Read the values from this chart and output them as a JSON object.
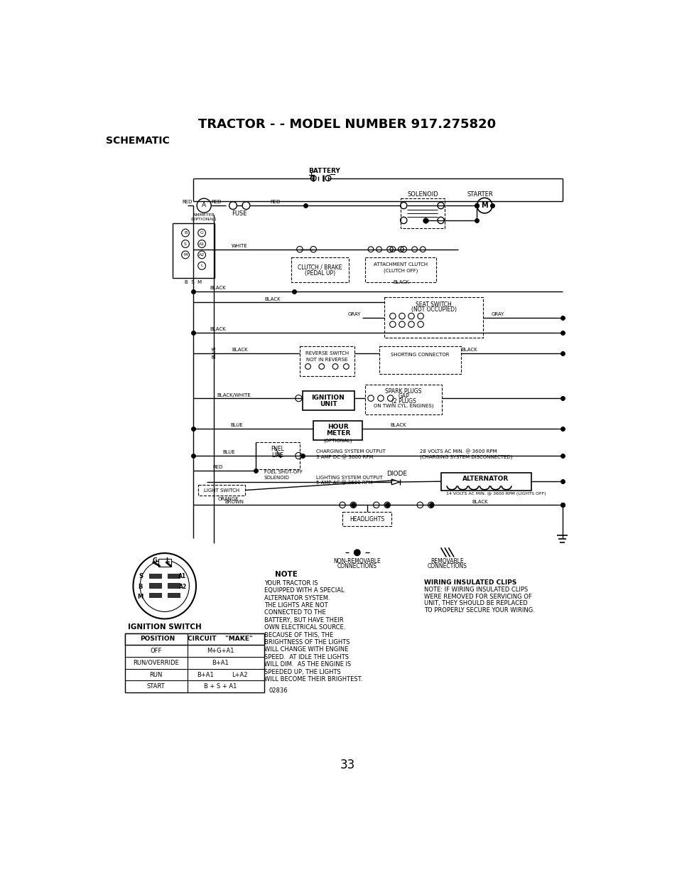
{
  "title": "TRACTOR - - MODEL NUMBER 917.275820",
  "subtitle": "SCHEMATIC",
  "page_number": "33",
  "bg": "#ffffff",
  "table_rows": [
    [
      "OFF",
      "M+G+A1",
      ""
    ],
    [
      "RUN/OVERRIDE",
      "B+A1",
      ""
    ],
    [
      "RUN",
      "B+A1",
      "L+A2"
    ],
    [
      "START",
      "B + S + A1",
      ""
    ]
  ],
  "diagram_code": "02836",
  "note_lines": [
    "YOUR TRACTOR IS",
    "EQUIPPED WITH A SPECIAL",
    "ALTERNATOR SYSTEM.",
    "THE LIGHTS ARE NOT",
    "CONNECTED TO THE",
    "BATTERY, BUT HAVE THEIR",
    "OWN ELECTRICAL SOURCE.",
    "BECAUSE OF THIS, THE",
    "BRIGHTNESS OF THE LIGHTS",
    "WILL CHANGE WITH ENGINE",
    "SPEED.  AT IDLE THE LIGHTS",
    "WILL DIM.  AS THE ENGINE IS",
    "SPEEDED UP, THE LIGHTS",
    "WILL BECOME THEIR BRIGHTEST."
  ],
  "wiring_lines": [
    "NOTE: IF WIRING INSULATED CLIPS",
    "WERE REMOVED FOR SERVICING OF",
    "UNIT, THEY SHOULD BE REPLACED",
    "TO PROPERLY SECURE YOUR WIRING."
  ]
}
